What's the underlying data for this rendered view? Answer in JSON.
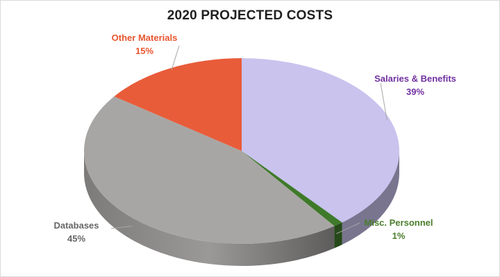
{
  "chart_data": {
    "type": "pie",
    "title": "2020 PROJECTED COSTS",
    "slices": [
      {
        "label": "Salaries & Benefits",
        "value": 39,
        "value_label": "39%",
        "color": "#c9c3ee",
        "label_color": "#7030a0"
      },
      {
        "label": "Misc. Personnel",
        "value": 1,
        "value_label": "1%",
        "color": "#3f7a2a",
        "label_color": "#4a7d2c"
      },
      {
        "label": "Databases",
        "value": 45,
        "value_label": "45%",
        "color": "#a8a6a4",
        "label_color": "#666666"
      },
      {
        "label": "Other Materials",
        "value": 15,
        "value_label": "15%",
        "color": "#e85c3a",
        "label_color": "#e8552f"
      }
    ],
    "style": "3d"
  }
}
